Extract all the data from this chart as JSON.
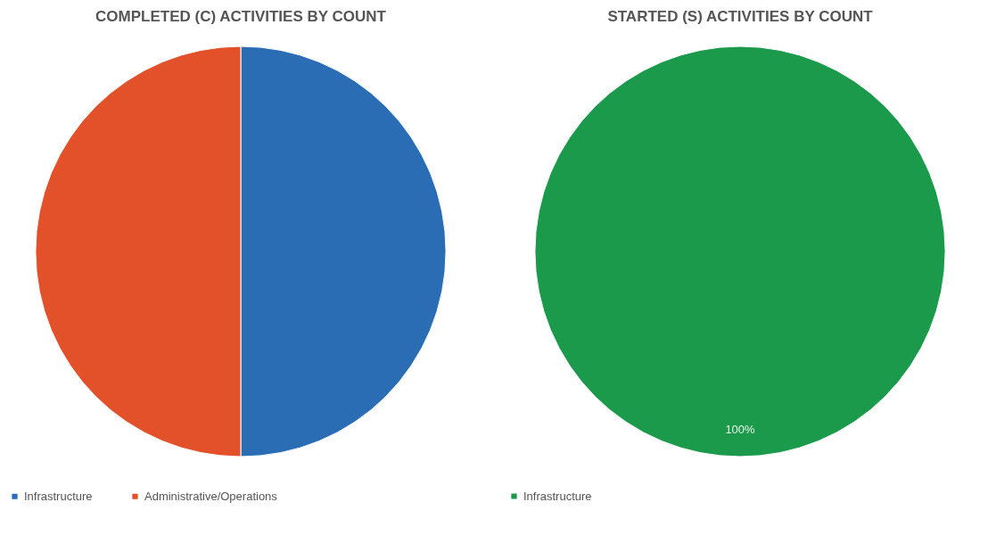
{
  "chart_data": [
    {
      "type": "pie",
      "title": "COMPLETED (C) ACTIVITIES BY COUNT",
      "categories": [
        "Infrastructure",
        "Administrative/Operations"
      ],
      "values": [
        50,
        50
      ],
      "colors": [
        "#2a6db5",
        "#e2512a"
      ],
      "legend": "bottom"
    },
    {
      "type": "pie",
      "title": "STARTED (S) ACTIVITIES BY COUNT",
      "categories": [
        "Infrastructure"
      ],
      "values": [
        100
      ],
      "colors": [
        "#1c9a4c"
      ],
      "legend": "bottom",
      "value_labels": [
        "100%"
      ]
    }
  ]
}
